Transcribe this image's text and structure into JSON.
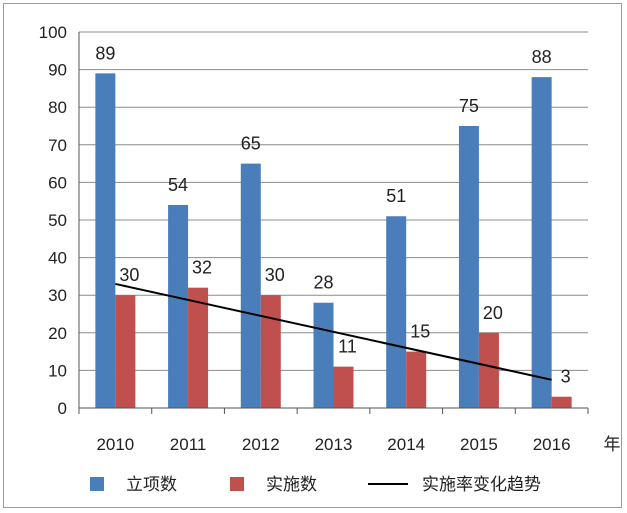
{
  "chart_data": {
    "type": "bar",
    "categories": [
      "2010",
      "2011",
      "2012",
      "2013",
      "2014",
      "2015",
      "2016"
    ],
    "x_unit": "年",
    "series": [
      {
        "name": "立项数",
        "color": "#4a7ebb",
        "values": [
          89,
          54,
          65,
          28,
          51,
          75,
          88
        ]
      },
      {
        "name": "实施数",
        "color": "#c0504d",
        "values": [
          30,
          32,
          30,
          11,
          15,
          20,
          3
        ]
      }
    ],
    "trendline": {
      "name": "实施率变化趋势",
      "color": "#000000",
      "start": 33,
      "end": 7.5
    },
    "ylim": [
      0,
      100
    ],
    "yticks": [
      0,
      10,
      20,
      30,
      40,
      50,
      60,
      70,
      80,
      90,
      100
    ],
    "grid": true,
    "legend_position": "bottom"
  }
}
